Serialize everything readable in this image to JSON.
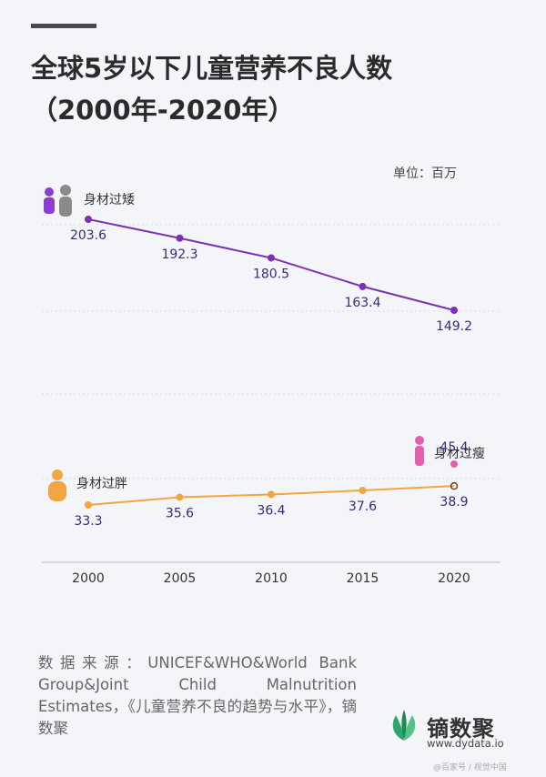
{
  "header": {
    "title_line1": "全球5岁以下儿童营养不良人数",
    "title_line2": "（2000年-2020年）",
    "unit": "单位：百万"
  },
  "chart_data": {
    "type": "line",
    "x": [
      2000,
      2005,
      2010,
      2015,
      2020
    ],
    "series": [
      {
        "name": "身材过矮",
        "values": [
          203.6,
          192.3,
          180.5,
          163.4,
          149.2
        ],
        "color": "#7e2fb8",
        "icon": "person-pair-icon"
      },
      {
        "name": "身材过胖",
        "values": [
          33.3,
          35.6,
          36.4,
          37.6,
          38.9
        ],
        "color": "#f2a541",
        "icon": "chubby-person-icon"
      },
      {
        "name": "身材过瘦",
        "x": [
          2020
        ],
        "values": [
          45.4
        ],
        "color": "#e35fae",
        "icon": "thin-person-icon"
      }
    ],
    "x_tick_labels": [
      "2000",
      "2005",
      "2010",
      "2015",
      "2020"
    ],
    "label_color": "#3a2a7a",
    "grid": "horizontal dashed",
    "ylim": [
      0,
      220
    ]
  },
  "source": {
    "text": "数据来源：UNICEF&WHO&World Bank Group&Joint Child Malnutrition Estimates，《儿童营养不良的趋势与水平》，镝数聚"
  },
  "logo": {
    "name": "镝数聚",
    "url": "www.dydata.io",
    "icon": "leaf-logo-icon",
    "color": "#2fa66b"
  },
  "watermark": {
    "text": "@百家号 / 视觉中国"
  }
}
